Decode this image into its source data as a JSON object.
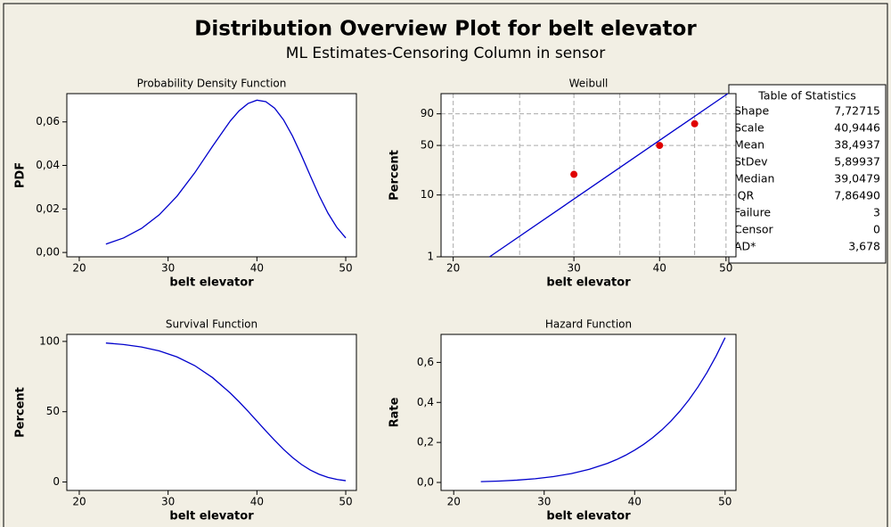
{
  "title": "Distribution Overview Plot for belt elevator",
  "subtitle": "ML Estimates-Censoring Column in sensor",
  "chart_data": [
    {
      "type": "line",
      "title": "Probability Density Function",
      "xlabel": "belt elevator",
      "ylabel": "PDF",
      "x": [
        23,
        25,
        27,
        29,
        31,
        33,
        35,
        37,
        38,
        39,
        40,
        41,
        42,
        43,
        44,
        45,
        46,
        47,
        48,
        49,
        50
      ],
      "series": [
        {
          "color": "#0000cc",
          "values": [
            0.003856,
            0.006682,
            0.011014,
            0.017291,
            0.025842,
            0.036606,
            0.048788,
            0.06044,
            0.065133,
            0.068463,
            0.069986,
            0.069332,
            0.0663,
            0.060929,
            0.053553,
            0.044749,
            0.035346,
            0.026183,
            0.018069,
            0.011503,
            0.006701
          ]
        }
      ],
      "xlim": [
        18.6,
        51.2
      ],
      "xticks": [
        20,
        30,
        40,
        50
      ],
      "ylim": [
        -0.002,
        0.073
      ],
      "yticks": [
        {
          "value": 0,
          "label": "0,00"
        },
        {
          "value": 0.02,
          "label": "0,02"
        },
        {
          "value": 0.04,
          "label": "0,04"
        },
        {
          "value": 0.06,
          "label": "0,06"
        }
      ]
    },
    {
      "type": "probability",
      "title": "Weibull",
      "xlabel": "belt elevator",
      "ylabel": "Percent",
      "xscale": "log",
      "yscale": "weibull",
      "grid": true,
      "series": [
        {
          "type": "scatter",
          "color": "#e00000",
          "x": [
            30,
            40,
            45
          ],
          "values": [
            20.6,
            50,
            79.4
          ]
        },
        {
          "type": "line",
          "color": "#0000cc",
          "x": [
            22.6,
            50.3
          ],
          "values": [
            1,
            99.3
          ]
        }
      ],
      "xlim": [
        19.2,
        51.7
      ],
      "xticks": [
        20,
        30,
        40,
        50
      ],
      "xgrid": [
        20,
        25,
        30,
        35,
        40,
        45,
        50
      ],
      "ylim": [
        1,
        99.3
      ],
      "yticks": [
        1,
        10,
        50,
        90
      ]
    },
    {
      "type": "line",
      "title": "Survival Function",
      "xlabel": "belt elevator",
      "ylabel": "Percent",
      "x": [
        23,
        25,
        27,
        29,
        31,
        33,
        35,
        37,
        38,
        39,
        40,
        41,
        42,
        43,
        44,
        45,
        46,
        47,
        48,
        49,
        50
      ],
      "series": [
        {
          "color": "#0000cc",
          "values": [
            98.85,
            97.81,
            96.07,
            93.28,
            89.0,
            82.79,
            74.27,
            63.31,
            57.02,
            50.33,
            43.39,
            36.41,
            29.61,
            23.22,
            17.49,
            12.56,
            8.56,
            5.49,
            3.29,
            1.82,
            0.93
          ]
        }
      ],
      "xlim": [
        18.6,
        51.2
      ],
      "xticks": [
        20,
        30,
        40,
        50
      ],
      "ylim": [
        -6,
        105
      ],
      "yticks": [
        0,
        50,
        100
      ]
    },
    {
      "type": "line",
      "title": "Hazard Function",
      "xlabel": "belt elevator",
      "ylabel": "Rate",
      "x": [
        23,
        25,
        27,
        29,
        31,
        33,
        35,
        37,
        38,
        39,
        40,
        41,
        42,
        43,
        44,
        45,
        46,
        47,
        48,
        49,
        50
      ],
      "series": [
        {
          "color": "#0000cc",
          "values": [
            0.0039,
            0.00683,
            0.01146,
            0.01854,
            0.02903,
            0.04421,
            0.06569,
            0.09547,
            0.11422,
            0.13603,
            0.16129,
            0.19043,
            0.22395,
            0.26236,
            0.30624,
            0.3562,
            0.41296,
            0.47728,
            0.54987,
            0.6317,
            0.72364
          ]
        }
      ],
      "xlim": [
        18.6,
        51.2
      ],
      "xticks": [
        20,
        30,
        40,
        50
      ],
      "ylim": [
        -0.04,
        0.74
      ],
      "yticks": [
        {
          "value": 0,
          "label": "0,0"
        },
        {
          "value": 0.2,
          "label": "0,2"
        },
        {
          "value": 0.4,
          "label": "0,4"
        },
        {
          "value": 0.6,
          "label": "0,6"
        }
      ]
    }
  ],
  "table": {
    "title": "Table of Statistics",
    "rows": [
      [
        "Shape",
        "7,72715"
      ],
      [
        "Scale",
        "40,9446"
      ],
      [
        "Mean",
        "38,4937"
      ],
      [
        "StDev",
        "5,89937"
      ],
      [
        "Median",
        "39,0479"
      ],
      [
        "IQR",
        "7,86490"
      ],
      [
        "Failure",
        "3"
      ],
      [
        "Censor",
        "0"
      ],
      [
        "AD*",
        "3,678"
      ]
    ]
  }
}
